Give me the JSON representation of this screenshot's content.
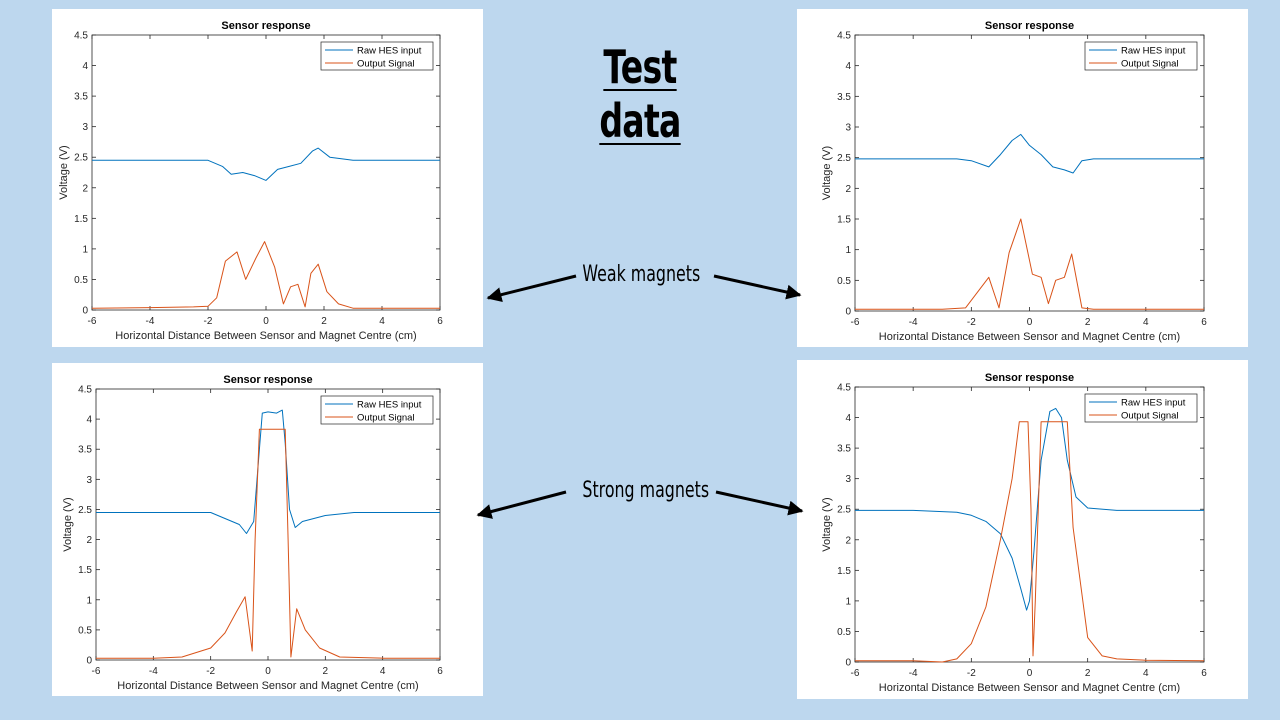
{
  "slide": {
    "title": "Test data",
    "weak_label": "Weak magnets",
    "strong_label": "Strong magnets"
  },
  "colors": {
    "background": "#bdd7ee",
    "raw_series": "#0072bd",
    "output_series": "#d95319"
  },
  "chart_data": [
    {
      "id": "weak-1",
      "type": "line",
      "title": "Sensor response",
      "xlabel": "Horizontal Distance Between Sensor and Magnet Centre (cm)",
      "ylabel": "Voltage (V)",
      "xlim": [
        -6,
        6
      ],
      "ylim": [
        0,
        4.5
      ],
      "xticks": [
        -6,
        -4,
        -2,
        0,
        2,
        4,
        6
      ],
      "yticks": [
        0,
        0.5,
        1,
        1.5,
        2,
        2.5,
        3,
        3.5,
        4,
        4.5
      ],
      "legend": "top-right",
      "series": [
        {
          "name": "Raw HES input",
          "x": [
            -6,
            -5,
            -4,
            -3,
            -2,
            -1.5,
            -1.2,
            -0.8,
            -0.4,
            0,
            0.4,
            0.8,
            1.2,
            1.6,
            1.8,
            2.2,
            3,
            4,
            5,
            6
          ],
          "y": [
            2.45,
            2.45,
            2.45,
            2.45,
            2.45,
            2.35,
            2.22,
            2.25,
            2.2,
            2.12,
            2.3,
            2.35,
            2.4,
            2.6,
            2.65,
            2.5,
            2.45,
            2.45,
            2.45,
            2.45
          ]
        },
        {
          "name": "Output Signal",
          "x": [
            -6,
            -4,
            -2.5,
            -2,
            -1.7,
            -1.4,
            -1,
            -0.7,
            -0.35,
            -0.05,
            0.3,
            0.6,
            0.85,
            1.1,
            1.35,
            1.55,
            1.8,
            2.1,
            2.5,
            3,
            4,
            6
          ],
          "y": [
            0.03,
            0.04,
            0.05,
            0.06,
            0.2,
            0.8,
            0.95,
            0.5,
            0.85,
            1.12,
            0.7,
            0.1,
            0.38,
            0.42,
            0.05,
            0.6,
            0.75,
            0.3,
            0.1,
            0.03,
            0.03,
            0.03
          ]
        }
      ]
    },
    {
      "id": "weak-2",
      "type": "line",
      "title": "Sensor response",
      "xlabel": "Horizontal Distance Between Sensor and Magnet Centre (cm)",
      "ylabel": "Voltage (V)",
      "xlim": [
        -6,
        6
      ],
      "ylim": [
        0,
        4.5
      ],
      "xticks": [
        -6,
        -4,
        -2,
        0,
        2,
        4,
        6
      ],
      "yticks": [
        0,
        0.5,
        1,
        1.5,
        2,
        2.5,
        3,
        3.5,
        4,
        4.5
      ],
      "legend": "top-right",
      "series": [
        {
          "name": "Raw HES input",
          "x": [
            -6,
            -4,
            -2.5,
            -2,
            -1.4,
            -1,
            -0.6,
            -0.3,
            0,
            0.4,
            0.8,
            1.2,
            1.5,
            1.8,
            2.2,
            3,
            4,
            5,
            6
          ],
          "y": [
            2.48,
            2.48,
            2.48,
            2.45,
            2.35,
            2.55,
            2.78,
            2.88,
            2.7,
            2.55,
            2.35,
            2.3,
            2.25,
            2.45,
            2.48,
            2.48,
            2.48,
            2.48,
            2.48
          ]
        },
        {
          "name": "Output Signal",
          "x": [
            -6,
            -3,
            -2.2,
            -1.8,
            -1.4,
            -1.05,
            -0.7,
            -0.3,
            0.1,
            0.4,
            0.65,
            0.9,
            1.2,
            1.45,
            1.8,
            2.2,
            3,
            6
          ],
          "y": [
            0.03,
            0.03,
            0.05,
            0.3,
            0.55,
            0.05,
            0.95,
            1.5,
            0.6,
            0.55,
            0.12,
            0.5,
            0.55,
            0.93,
            0.05,
            0.03,
            0.03,
            0.03
          ]
        }
      ]
    },
    {
      "id": "strong-1",
      "type": "line",
      "title": "Sensor response",
      "xlabel": "Horizontal Distance Between Sensor and Magnet Centre (cm)",
      "ylabel": "Voltage (V)",
      "xlim": [
        -6,
        6
      ],
      "ylim": [
        0,
        4.5
      ],
      "xticks": [
        -6,
        -4,
        -2,
        0,
        2,
        4,
        6
      ],
      "yticks": [
        0,
        0.5,
        1,
        1.5,
        2,
        2.5,
        3,
        3.5,
        4,
        4.5
      ],
      "legend": "top-right",
      "series": [
        {
          "name": "Raw HES input",
          "x": [
            -6,
            -4,
            -2,
            -1.5,
            -1,
            -0.75,
            -0.5,
            -0.3,
            -0.2,
            0,
            0.3,
            0.5,
            0.6,
            0.75,
            0.95,
            1.2,
            2,
            3,
            4,
            6
          ],
          "y": [
            2.45,
            2.45,
            2.45,
            2.35,
            2.25,
            2.1,
            2.3,
            3.5,
            4.1,
            4.12,
            4.1,
            4.15,
            3.6,
            2.5,
            2.2,
            2.3,
            2.4,
            2.45,
            2.45,
            2.45
          ]
        },
        {
          "name": "Output Signal",
          "x": [
            -6,
            -4,
            -3,
            -2,
            -1.5,
            -1.1,
            -0.8,
            -0.55,
            -0.45,
            -0.3,
            0,
            0.3,
            0.6,
            0.7,
            0.8,
            1,
            1.3,
            1.8,
            2.5,
            4,
            6
          ],
          "y": [
            0.03,
            0.03,
            0.05,
            0.2,
            0.45,
            0.8,
            1.05,
            0.15,
            2.0,
            3.83,
            3.83,
            3.83,
            3.83,
            2.0,
            0.05,
            0.85,
            0.5,
            0.2,
            0.05,
            0.03,
            0.03
          ]
        }
      ]
    },
    {
      "id": "strong-2",
      "type": "line",
      "title": "Sensor response",
      "xlabel": "Horizontal Distance Between Sensor and Magnet Centre (cm)",
      "ylabel": "Voltage (V)",
      "xlim": [
        -6,
        6
      ],
      "ylim": [
        0,
        4.5
      ],
      "xticks": [
        -6,
        -4,
        -2,
        0,
        2,
        4,
        6
      ],
      "yticks": [
        0,
        0.5,
        1,
        1.5,
        2,
        2.5,
        3,
        3.5,
        4,
        4.5
      ],
      "legend": "top-right",
      "series": [
        {
          "name": "Raw HES input",
          "x": [
            -6,
            -4,
            -2.5,
            -2,
            -1.5,
            -1,
            -0.6,
            -0.3,
            -0.1,
            0,
            0.15,
            0.4,
            0.7,
            0.9,
            1.1,
            1.3,
            1.6,
            2,
            3,
            4,
            6
          ],
          "y": [
            2.48,
            2.48,
            2.45,
            2.4,
            2.3,
            2.1,
            1.7,
            1.2,
            0.85,
            1.0,
            1.8,
            3.3,
            4.1,
            4.15,
            4.0,
            3.3,
            2.7,
            2.52,
            2.48,
            2.48,
            2.48
          ]
        },
        {
          "name": "Output Signal",
          "x": [
            -6,
            -4,
            -3,
            -2.5,
            -2,
            -1.5,
            -1,
            -0.6,
            -0.35,
            -0.05,
            0.05,
            0.12,
            0.2,
            0.4,
            0.7,
            1.0,
            1.3,
            1.5,
            2,
            2.5,
            3,
            4,
            6
          ],
          "y": [
            0.02,
            0.02,
            0.0,
            0.05,
            0.3,
            0.9,
            2.0,
            3.0,
            3.93,
            3.93,
            2.5,
            0.1,
            1.0,
            3.93,
            3.93,
            3.93,
            3.93,
            2.2,
            0.4,
            0.1,
            0.05,
            0.03,
            0.02
          ]
        }
      ]
    }
  ]
}
